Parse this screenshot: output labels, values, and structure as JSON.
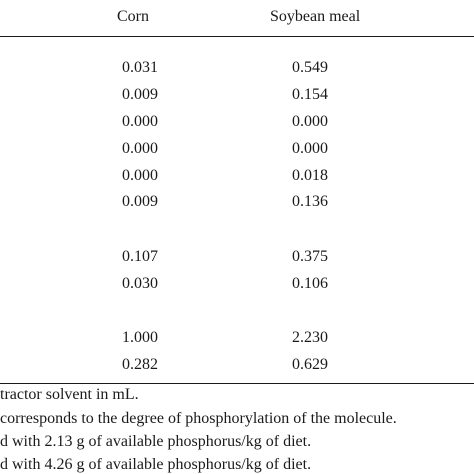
{
  "table": {
    "headers": [
      "Corn",
      "Soybean meal"
    ],
    "rows": [
      {
        "corn": "0.031",
        "soybean_meal": "0.549"
      },
      {
        "corn": "0.009",
        "soybean_meal": "0.154"
      },
      {
        "corn": "0.000",
        "soybean_meal": "0.000"
      },
      {
        "corn": "0.000",
        "soybean_meal": "0.000"
      },
      {
        "corn": "0.000",
        "soybean_meal": "0.018"
      },
      {
        "corn": "0.009",
        "soybean_meal": "0.136"
      },
      {
        "corn": "0.107",
        "soybean_meal": "0.375"
      },
      {
        "corn": "0.030",
        "soybean_meal": "0.106"
      },
      {
        "corn": "1.000",
        "soybean_meal": "2.230"
      },
      {
        "corn": "0.282",
        "soybean_meal": "0.629"
      }
    ]
  },
  "footnotes": [
    "tractor solvent in mL.",
    "corresponds to the degree of phosphorylation of the molecule.",
    "d with 2.13 g of available phosphorus/kg of diet.",
    "d with 4.26 g of available phosphorus/kg of diet."
  ]
}
